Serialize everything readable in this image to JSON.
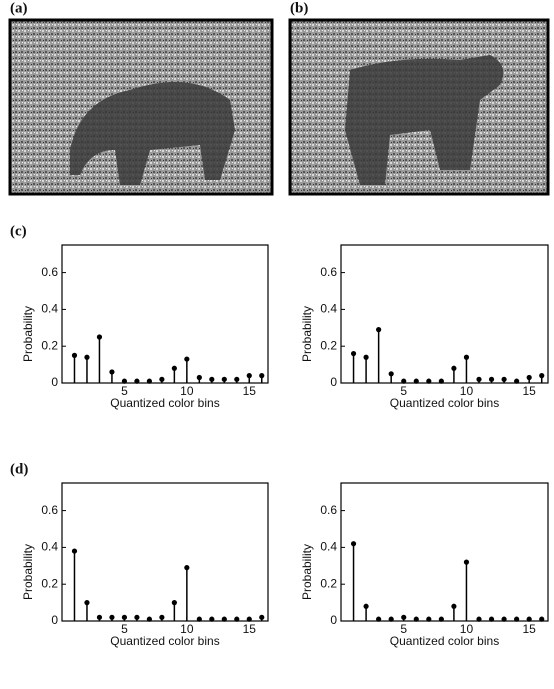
{
  "figure_labels": [
    "(a)",
    "(b)",
    "(c)",
    "(d)"
  ],
  "chart_data": [
    {
      "type": "stem",
      "xlabel": "Quantized color bins",
      "ylabel": "Probability",
      "color": "#000000",
      "x": [
        1,
        2,
        3,
        4,
        5,
        6,
        7,
        8,
        9,
        10,
        11,
        12,
        13,
        14,
        15,
        16
      ],
      "values": [
        0.15,
        0.14,
        0.25,
        0.06,
        0.01,
        0.01,
        0.01,
        0.02,
        0.08,
        0.13,
        0.03,
        0.02,
        0.02,
        0.02,
        0.04,
        0.04
      ],
      "xlim": [
        0,
        16.5
      ],
      "ylim": [
        0,
        0.75
      ],
      "xticks": [
        5,
        10,
        15
      ],
      "yticks": [
        0,
        0.2,
        0.4,
        0.6
      ]
    },
    {
      "type": "stem",
      "xlabel": "Quantized color bins",
      "ylabel": "Probability",
      "color": "#000000",
      "x": [
        1,
        2,
        3,
        4,
        5,
        6,
        7,
        8,
        9,
        10,
        11,
        12,
        13,
        14,
        15,
        16
      ],
      "values": [
        0.16,
        0.14,
        0.29,
        0.05,
        0.01,
        0.01,
        0.01,
        0.01,
        0.08,
        0.14,
        0.02,
        0.02,
        0.02,
        0.01,
        0.03,
        0.04
      ],
      "xlim": [
        0,
        16.5
      ],
      "ylim": [
        0,
        0.75
      ],
      "xticks": [
        5,
        10,
        15
      ],
      "yticks": [
        0,
        0.2,
        0.4,
        0.6
      ]
    },
    {
      "type": "stem",
      "xlabel": "Quantized color bins",
      "ylabel": "Probability",
      "color": "#000000",
      "x": [
        1,
        2,
        3,
        4,
        5,
        6,
        7,
        8,
        9,
        10,
        11,
        12,
        13,
        14,
        15,
        16
      ],
      "values": [
        0.38,
        0.1,
        0.02,
        0.02,
        0.02,
        0.02,
        0.01,
        0.02,
        0.1,
        0.29,
        0.01,
        0.01,
        0.01,
        0.01,
        0.01,
        0.02
      ],
      "xlim": [
        0,
        16.5
      ],
      "ylim": [
        0,
        0.75
      ],
      "xticks": [
        5,
        10,
        15
      ],
      "yticks": [
        0,
        0.2,
        0.4,
        0.6
      ]
    },
    {
      "type": "stem",
      "xlabel": "Quantized color bins",
      "ylabel": "Probability",
      "color": "#000000",
      "x": [
        1,
        2,
        3,
        4,
        5,
        6,
        7,
        8,
        9,
        10,
        11,
        12,
        13,
        14,
        15,
        16
      ],
      "values": [
        0.42,
        0.08,
        0.01,
        0.01,
        0.02,
        0.01,
        0.01,
        0.01,
        0.08,
        0.32,
        0.01,
        0.01,
        0.01,
        0.01,
        0.01,
        0.01
      ],
      "xlim": [
        0,
        16.5
      ],
      "ylim": [
        0,
        0.75
      ],
      "xticks": [
        5,
        10,
        15
      ],
      "yticks": [
        0,
        0.2,
        0.4,
        0.6
      ]
    }
  ]
}
